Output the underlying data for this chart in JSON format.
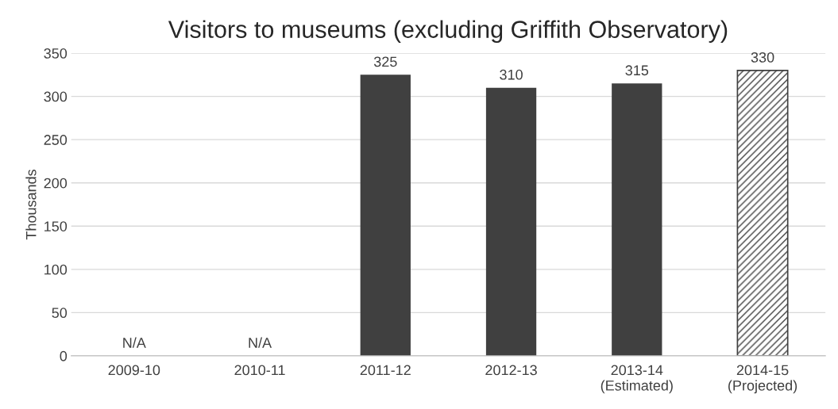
{
  "chart_data": {
    "type": "bar",
    "title": "Visitors to museums (excluding Griffith Observatory)",
    "ylabel": "Thousands",
    "categories": [
      "2009-10",
      "2010-11",
      "2011-12",
      "2012-13",
      "2013-14\n(Estimated)",
      "2014-15\n(Projected)"
    ],
    "series": [
      {
        "color": "#404040",
        "values": [
          null,
          null,
          325,
          310,
          315,
          null
        ],
        "value_labels": [
          "N/A",
          "N/A",
          "325",
          "310",
          "315",
          null
        ]
      },
      {
        "color": "#404040",
        "values": [
          null,
          null,
          null,
          null,
          null,
          330
        ],
        "value_labels": [
          null,
          null,
          null,
          null,
          null,
          "330"
        ]
      }
    ],
    "ylim": [
      0,
      350
    ],
    "yticks": [
      0,
      50,
      100,
      150,
      200,
      250,
      300,
      350
    ],
    "grid": "y",
    "legend": false
  }
}
